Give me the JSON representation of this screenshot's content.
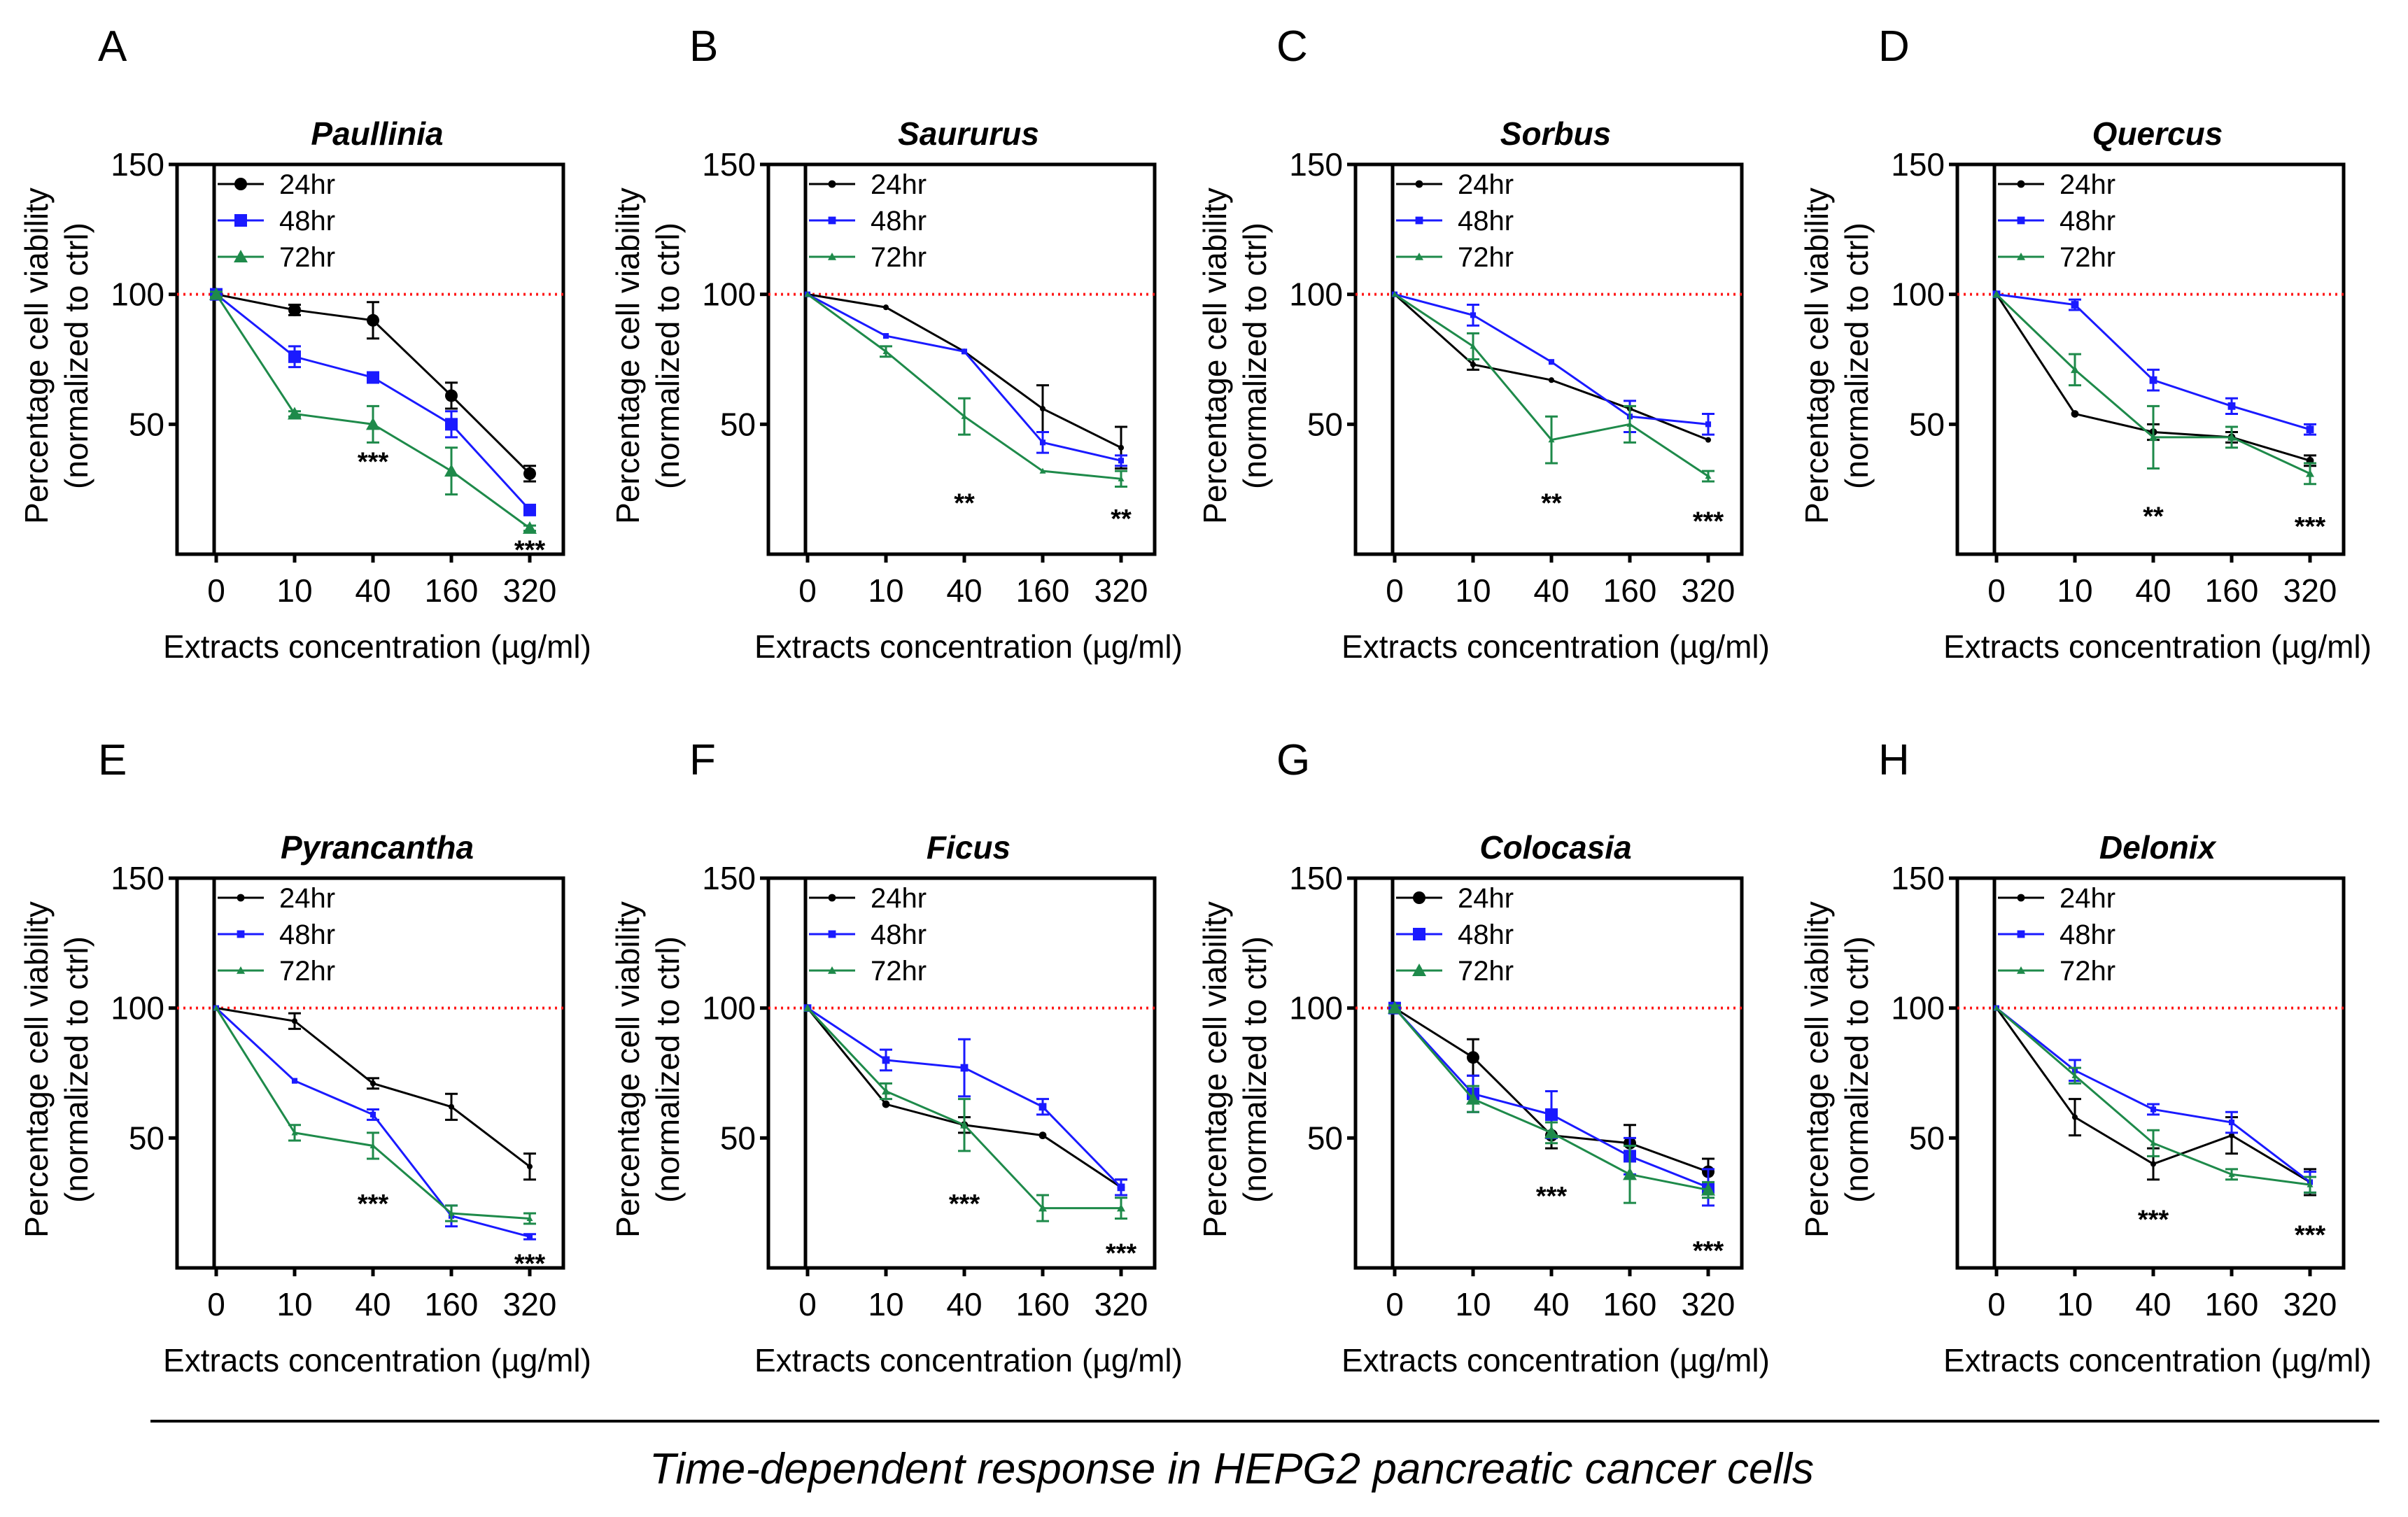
{
  "chart_data": [
    {
      "letter": "A",
      "type": "line",
      "title": "Paullinia",
      "categories": [
        "0",
        "10",
        "40",
        "160",
        "320"
      ],
      "ylabel": "Percentage cell viability",
      "ylabel2": "(normalized to ctrl)",
      "xlabel": "Extracts concentration (µg/ml)",
      "yticks": [
        "50",
        "100",
        "150"
      ],
      "ylim": [
        0,
        150
      ],
      "reference": 100,
      "marker_scale": 1,
      "series": [
        {
          "name": "24hr",
          "marker": "circle",
          "values": [
            100,
            94,
            90,
            61,
            31
          ],
          "errors": [
            1,
            2,
            7,
            5,
            3
          ]
        },
        {
          "name": "48hr",
          "marker": "square",
          "values": [
            100,
            76,
            68,
            50,
            17
          ],
          "errors": [
            1,
            4,
            1,
            5,
            1
          ]
        },
        {
          "name": "72hr",
          "marker": "triangle",
          "values": [
            100,
            54,
            50,
            32,
            10
          ],
          "errors": [
            1,
            1,
            7,
            9,
            1
          ]
        }
      ],
      "annotations": [
        {
          "text": "***",
          "x": 2,
          "y": 36
        },
        {
          "text": "***",
          "x": 4,
          "y": 2
        }
      ]
    },
    {
      "letter": "B",
      "type": "line",
      "title": "Saururus",
      "categories": [
        "0",
        "10",
        "40",
        "160",
        "320"
      ],
      "ylabel": "Percentage cell viability",
      "ylabel2": "(normalized to ctrl)",
      "xlabel": "Extracts concentration (µg/ml)",
      "yticks": [
        "50",
        "100",
        "150"
      ],
      "ylim": [
        0,
        150
      ],
      "reference": 100,
      "marker_scale": 0.45,
      "series": [
        {
          "name": "24hr",
          "marker": "circle",
          "values": [
            100,
            95,
            78,
            56,
            41
          ],
          "errors": [
            0,
            0,
            0,
            9,
            8
          ]
        },
        {
          "name": "48hr",
          "marker": "square",
          "values": [
            100,
            84,
            78,
            43,
            36
          ],
          "errors": [
            0,
            0,
            0,
            4,
            2
          ]
        },
        {
          "name": "72hr",
          "marker": "triangle",
          "values": [
            100,
            78,
            53,
            32,
            29
          ],
          "errors": [
            0,
            2,
            7,
            0,
            3
          ]
        }
      ],
      "annotations": [
        {
          "text": "**",
          "x": 2,
          "y": 20
        },
        {
          "text": "**",
          "x": 4,
          "y": 14
        }
      ]
    },
    {
      "letter": "C",
      "type": "line",
      "title": "Sorbus",
      "categories": [
        "0",
        "10",
        "40",
        "160",
        "320"
      ],
      "ylabel": "Percentage cell viability",
      "ylabel2": "(normalized to ctrl)",
      "xlabel": "Extracts concentration (µg/ml)",
      "yticks": [
        "50",
        "100",
        "150"
      ],
      "ylim": [
        0,
        150
      ],
      "reference": 100,
      "marker_scale": 0.45,
      "series": [
        {
          "name": "24hr",
          "marker": "circle",
          "values": [
            100,
            73,
            67,
            56,
            44
          ],
          "errors": [
            0,
            2,
            0,
            0,
            0
          ]
        },
        {
          "name": "48hr",
          "marker": "square",
          "values": [
            100,
            92,
            74,
            53,
            50
          ],
          "errors": [
            0,
            4,
            0,
            6,
            4
          ]
        },
        {
          "name": "72hr",
          "marker": "triangle",
          "values": [
            100,
            80,
            44,
            50,
            30
          ],
          "errors": [
            0,
            5,
            9,
            7,
            2
          ]
        }
      ],
      "annotations": [
        {
          "text": "**",
          "x": 2,
          "y": 20
        },
        {
          "text": "***",
          "x": 4,
          "y": 13
        }
      ]
    },
    {
      "letter": "D",
      "type": "line",
      "title": "Quercus",
      "categories": [
        "0",
        "10",
        "40",
        "160",
        "320"
      ],
      "ylabel": "Percentage cell viability",
      "ylabel2": "(normalized to ctrl)",
      "xlabel": "Extracts concentration (µg/ml)",
      "yticks": [
        "50",
        "100",
        "150"
      ],
      "ylim": [
        0,
        150
      ],
      "reference": 100,
      "marker_scale": 0.6,
      "series": [
        {
          "name": "24hr",
          "marker": "circle",
          "values": [
            100,
            54,
            47,
            45,
            36
          ],
          "errors": [
            0,
            0,
            3,
            2,
            2
          ]
        },
        {
          "name": "48hr",
          "marker": "square",
          "values": [
            100,
            96,
            67,
            57,
            48
          ],
          "errors": [
            0,
            2,
            4,
            3,
            2
          ]
        },
        {
          "name": "72hr",
          "marker": "triangle",
          "values": [
            100,
            71,
            45,
            45,
            31
          ],
          "errors": [
            0,
            6,
            12,
            4,
            4
          ]
        }
      ],
      "annotations": [
        {
          "text": "**",
          "x": 2,
          "y": 15
        },
        {
          "text": "***",
          "x": 4,
          "y": 11
        }
      ]
    },
    {
      "letter": "E",
      "type": "line",
      "title": "Pyrancantha",
      "categories": [
        "0",
        "10",
        "40",
        "160",
        "320"
      ],
      "ylabel": "Percentage cell viability",
      "ylabel2": "(normalized to ctrl)",
      "xlabel": "Extracts concentration (µg/ml)",
      "yticks": [
        "50",
        "100",
        "150"
      ],
      "ylim": [
        0,
        150
      ],
      "reference": 100,
      "marker_scale": 0.45,
      "series": [
        {
          "name": "24hr",
          "marker": "circle",
          "values": [
            100,
            95,
            71,
            62,
            39
          ],
          "errors": [
            0,
            3,
            2,
            5,
            5
          ]
        },
        {
          "name": "48hr",
          "marker": "square",
          "values": [
            100,
            72,
            59,
            20,
            12
          ],
          "errors": [
            0,
            0,
            2,
            4,
            1
          ]
        },
        {
          "name": "72hr",
          "marker": "triangle",
          "values": [
            100,
            52,
            47,
            21,
            19
          ],
          "errors": [
            0,
            3,
            5,
            3,
            2
          ]
        }
      ],
      "annotations": [
        {
          "text": "***",
          "x": 2,
          "y": 25
        },
        {
          "text": "***",
          "x": 4,
          "y": 2
        }
      ]
    },
    {
      "letter": "F",
      "type": "line",
      "title": "Ficus",
      "categories": [
        "0",
        "10",
        "40",
        "160",
        "320"
      ],
      "ylabel": "Percentage cell viability",
      "ylabel2": "(normalized to ctrl)",
      "xlabel": "Extracts concentration (µg/ml)",
      "yticks": [
        "50",
        "100",
        "150"
      ],
      "ylim": [
        0,
        150
      ],
      "reference": 100,
      "marker_scale": 0.6,
      "series": [
        {
          "name": "24hr",
          "marker": "circle",
          "values": [
            100,
            63,
            55,
            51,
            31
          ],
          "errors": [
            0,
            0,
            3,
            0,
            3
          ]
        },
        {
          "name": "48hr",
          "marker": "square",
          "values": [
            100,
            80,
            77,
            62,
            31
          ],
          "errors": [
            0,
            4,
            11,
            3,
            3
          ]
        },
        {
          "name": "72hr",
          "marker": "triangle",
          "values": [
            100,
            68,
            55,
            23,
            23
          ],
          "errors": [
            0,
            3,
            10,
            5,
            4
          ]
        }
      ],
      "annotations": [
        {
          "text": "***",
          "x": 2,
          "y": 25
        },
        {
          "text": "***",
          "x": 4,
          "y": 6
        }
      ]
    },
    {
      "letter": "G",
      "type": "line",
      "title": "Colocasia",
      "categories": [
        "0",
        "10",
        "40",
        "160",
        "320"
      ],
      "ylabel": "Percentage cell viability",
      "ylabel2": "(normalized to ctrl)",
      "xlabel": "Extracts concentration (µg/ml)",
      "yticks": [
        "50",
        "100",
        "150"
      ],
      "ylim": [
        0,
        150
      ],
      "reference": 100,
      "marker_scale": 1,
      "series": [
        {
          "name": "24hr",
          "marker": "circle",
          "values": [
            100,
            81,
            51,
            48,
            37
          ],
          "errors": [
            1,
            7,
            5,
            7,
            5
          ]
        },
        {
          "name": "48hr",
          "marker": "square",
          "values": [
            100,
            67,
            59,
            43,
            31
          ],
          "errors": [
            1,
            7,
            9,
            7,
            7
          ]
        },
        {
          "name": "72hr",
          "marker": "triangle",
          "values": [
            100,
            65,
            52,
            36,
            30
          ],
          "errors": [
            1,
            5,
            4,
            11,
            3
          ]
        }
      ],
      "annotations": [
        {
          "text": "***",
          "x": 2,
          "y": 28
        },
        {
          "text": "***",
          "x": 4,
          "y": 7
        }
      ]
    },
    {
      "letter": "H",
      "type": "line",
      "title": "Delonix",
      "categories": [
        "0",
        "10",
        "40",
        "160",
        "320"
      ],
      "ylabel": "Percentage cell viability",
      "ylabel2": "(normalized to ctrl)",
      "xlabel": "Extracts concentration (µg/ml)",
      "yticks": [
        "50",
        "100",
        "150"
      ],
      "ylim": [
        0,
        150
      ],
      "reference": 100,
      "marker_scale": 0.45,
      "series": [
        {
          "name": "24hr",
          "marker": "circle",
          "values": [
            100,
            58,
            40,
            51,
            33
          ],
          "errors": [
            0,
            7,
            6,
            7,
            5
          ]
        },
        {
          "name": "48hr",
          "marker": "square",
          "values": [
            100,
            76,
            61,
            56,
            33
          ],
          "errors": [
            0,
            4,
            2,
            4,
            4
          ]
        },
        {
          "name": "72hr",
          "marker": "triangle",
          "values": [
            100,
            74,
            48,
            36,
            32
          ],
          "errors": [
            0,
            3,
            5,
            2,
            3
          ]
        }
      ],
      "annotations": [
        {
          "text": "***",
          "x": 2,
          "y": 19
        },
        {
          "text": "***",
          "x": 4,
          "y": 13
        }
      ]
    }
  ],
  "caption": "Time-dependent response in HEPG2 pancreatic cancer cells",
  "colors": {
    "24hr": "#000000",
    "48hr": "#1a1aff",
    "72hr": "#1e8a4a",
    "reference": "#ff1a1a",
    "axis": "#000000"
  }
}
